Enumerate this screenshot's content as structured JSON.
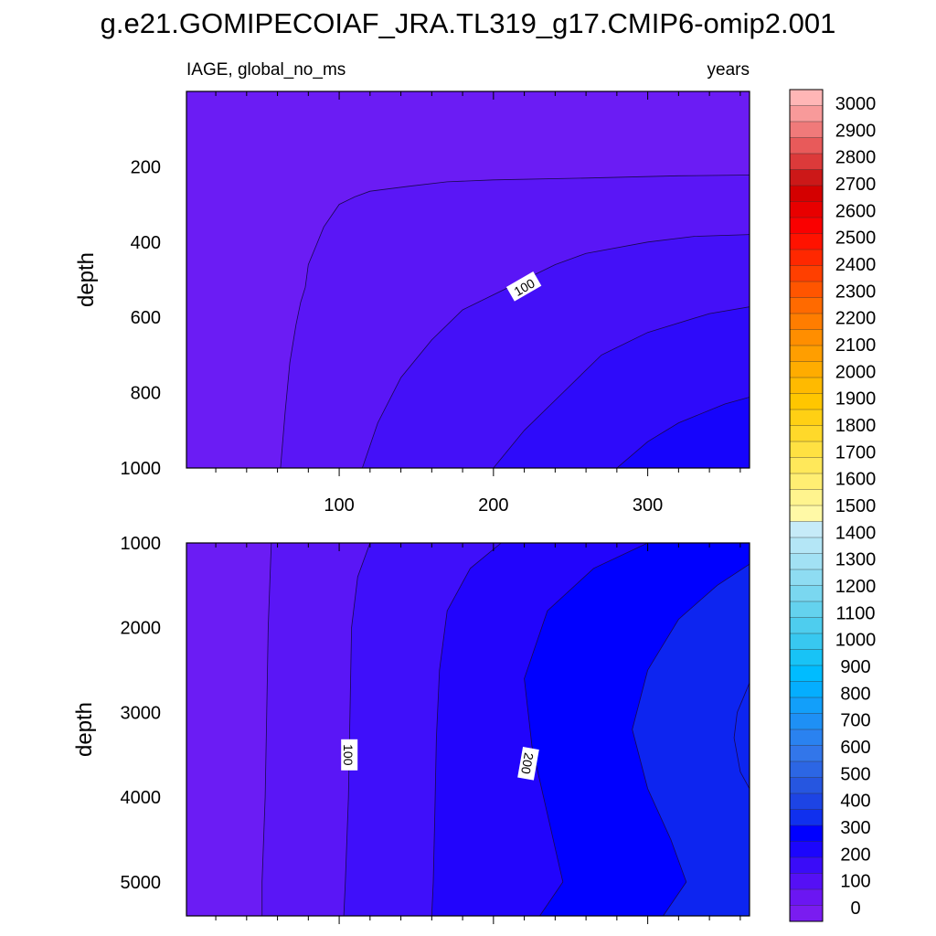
{
  "title": "g.e21.GOMIPECOIAF_JRA.TL319_g17.CMIP6-omip2.001",
  "colorbar": {
    "labels": [
      "0",
      "100",
      "200",
      "300",
      "400",
      "500",
      "600",
      "700",
      "800",
      "900",
      "1000",
      "1100",
      "1200",
      "1300",
      "1400",
      "1500",
      "1600",
      "1700",
      "1800",
      "1900",
      "2000",
      "2100",
      "2200",
      "2300",
      "2400",
      "2500",
      "2600",
      "2700",
      "2800",
      "2900",
      "3000"
    ],
    "colors": [
      "#7a1cf0",
      "#6b16f2",
      "#5510f5",
      "#3a0cf8",
      "#1c06fc",
      "#0000ff",
      "#1030ee",
      "#1d44e4",
      "#2656e0",
      "#2c66e4",
      "#3276ea",
      "#2a82f0",
      "#1e90f5",
      "#129ffa",
      "#05aefe",
      "#00bcff",
      "#18c3f6",
      "#38c8f0",
      "#4ecdee",
      "#64d2ee",
      "#7ad7f0",
      "#8edcf2",
      "#a2e1f4",
      "#b4e6f6",
      "#c6ebf8",
      "#fff9a6",
      "#fff48e",
      "#ffee72",
      "#ffe85a",
      "#ffe142",
      "#ffd92a",
      "#ffd014",
      "#ffc600",
      "#ffba00",
      "#ffac00",
      "#ff9e00",
      "#ff8e00",
      "#ff7d00",
      "#ff6a00",
      "#ff5500",
      "#ff3f00",
      "#ff2800",
      "#ff1200",
      "#fa0000",
      "#e80000",
      "#d40000",
      "#cc1818",
      "#dc3a3a",
      "#e85a5a",
      "#f07a7a",
      "#f89a9a",
      "#ffb6b6"
    ]
  },
  "chart_data": [
    {
      "type": "contour",
      "panel": "upper",
      "left_label": "IAGE, global_no_ms",
      "right_label": "years",
      "ylabel": "depth",
      "xlim": [
        1,
        366
      ],
      "ylim": [
        1000,
        0
      ],
      "y_ticks": [
        200,
        400,
        600,
        800,
        1000
      ],
      "x_ticks": [
        100,
        200,
        300
      ],
      "x_minor_step": 20,
      "y_minor_step": 40,
      "contour_levels": [
        25,
        50,
        75,
        100,
        125
      ],
      "level_colors": [
        "#6b1cf4",
        "#5a16f6",
        "#4410f8",
        "#2e0afa",
        "#1604fc",
        "#0000ff"
      ],
      "contours": [
        {
          "level": 25,
          "points": [
            [
              366,
              222
            ],
            [
              320,
              224
            ],
            [
              260,
              230
            ],
            [
              200,
              235
            ],
            [
              170,
              240
            ],
            [
              145,
              252
            ],
            [
              120,
              265
            ],
            [
              110,
              280
            ],
            [
              100,
              300
            ],
            [
              95,
              330
            ],
            [
              90,
              360
            ],
            [
              85,
              410
            ],
            [
              80,
              460
            ],
            [
              78,
              520
            ],
            [
              75,
              560
            ],
            [
              72,
              620
            ],
            [
              68,
              720
            ],
            [
              65,
              850
            ],
            [
              62,
              1000
            ]
          ]
        },
        {
          "level": 50,
          "points": [
            [
              366,
              380
            ],
            [
              330,
              385
            ],
            [
              300,
              400
            ],
            [
              260,
              430
            ],
            [
              240,
              460
            ],
            [
              200,
              540
            ],
            [
              180,
              580
            ],
            [
              160,
              660
            ],
            [
              140,
              760
            ],
            [
              125,
              880
            ],
            [
              115,
              1000
            ]
          ]
        },
        {
          "level": 75,
          "points": [
            [
              366,
              572
            ],
            [
              340,
              590
            ],
            [
              300,
              640
            ],
            [
              270,
              700
            ],
            [
              245,
              800
            ],
            [
              220,
              900
            ],
            [
              200,
              1000
            ]
          ]
        },
        {
          "level": 100,
          "points": [
            [
              366,
              812
            ],
            [
              350,
              830
            ],
            [
              320,
              880
            ],
            [
              300,
              930
            ],
            [
              280,
              1000
            ]
          ]
        }
      ],
      "contour_labels": [
        {
          "text": "100",
          "x": 220,
          "y": 520,
          "angle": -30
        }
      ]
    },
    {
      "type": "contour",
      "panel": "lower",
      "ylabel": "depth",
      "xlim": [
        1,
        366
      ],
      "ylim": [
        5400,
        1000
      ],
      "y_ticks": [
        1000,
        2000,
        3000,
        4000,
        5000
      ],
      "x_minor_step": 20,
      "y_minor_step": 200,
      "contour_levels": [
        50,
        100,
        150,
        200,
        250
      ],
      "level_colors": [
        "#6b1cf4",
        "#5a16f6",
        "#3f0ffa",
        "#2204fc",
        "#0000ff",
        "#0d25f0"
      ],
      "contours": [
        {
          "level": 50,
          "points": [
            [
              56,
              1000
            ],
            [
              54,
              2000
            ],
            [
              53,
              3000
            ],
            [
              52,
              4000
            ],
            [
              50,
              5000
            ],
            [
              50,
              5400
            ]
          ]
        },
        {
          "level": 100,
          "points": [
            [
              120,
              1000
            ],
            [
              112,
              1400
            ],
            [
              108,
              2000
            ],
            [
              107,
              3000
            ],
            [
              106,
              4000
            ],
            [
              104,
              5000
            ],
            [
              103,
              5400
            ]
          ]
        },
        {
          "level": 150,
          "points": [
            [
              205,
              1000
            ],
            [
              185,
              1300
            ],
            [
              170,
              1800
            ],
            [
              165,
              2500
            ],
            [
              163,
              3300
            ],
            [
              162,
              4200
            ],
            [
              161,
              5000
            ],
            [
              160,
              5400
            ]
          ]
        },
        {
          "level": 200,
          "points": [
            [
              300,
              1000
            ],
            [
              265,
              1300
            ],
            [
              235,
              1800
            ],
            [
              220,
              2600
            ],
            [
              225,
              3400
            ],
            [
              235,
              4200
            ],
            [
              245,
              5000
            ],
            [
              230,
              5400
            ]
          ]
        },
        {
          "level": 250,
          "points": [
            [
              366,
              1250
            ],
            [
              345,
              1500
            ],
            [
              320,
              1900
            ],
            [
              300,
              2500
            ],
            [
              290,
              3200
            ],
            [
              300,
              3900
            ],
            [
              315,
              4500
            ],
            [
              325,
              5000
            ],
            [
              310,
              5400
            ]
          ]
        }
      ],
      "inner_bulge": {
        "level": 275,
        "points": [
          [
            366,
            2650
          ],
          [
            358,
            3000
          ],
          [
            356,
            3300
          ],
          [
            360,
            3700
          ],
          [
            366,
            3900
          ]
        ]
      },
      "contour_labels": [
        {
          "text": "100",
          "x": 106,
          "y": 3500,
          "angle": 90
        },
        {
          "text": "200",
          "x": 222,
          "y": 3600,
          "angle": 100
        }
      ]
    }
  ]
}
